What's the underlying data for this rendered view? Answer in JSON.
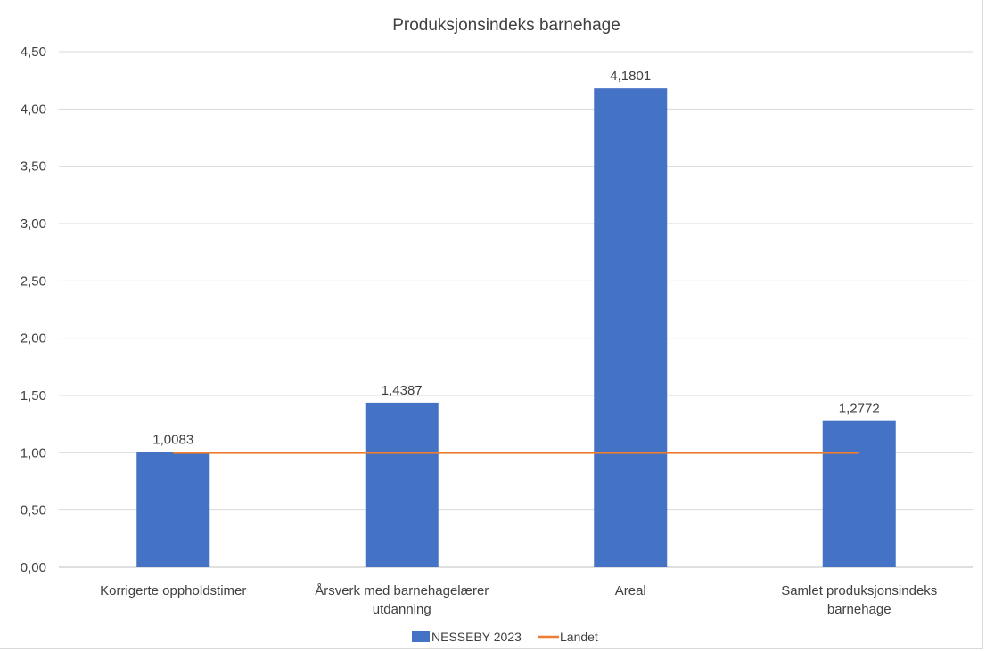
{
  "chart_data": {
    "type": "bar",
    "title": "Produksjonsindeks barnehage",
    "categories": [
      [
        "Korrigerte oppholdstimer"
      ],
      [
        "Årsverk med barnehagelærer",
        "utdanning"
      ],
      [
        "Areal"
      ],
      [
        "Samlet produksjonsindeks",
        "barnehage"
      ]
    ],
    "series": [
      {
        "name": "NESSEBY 2023",
        "type": "bar",
        "color": "#4472c4",
        "values": [
          1.0083,
          1.4387,
          4.1801,
          1.2772
        ],
        "labels": [
          "1,0083",
          "1,4387",
          "4,1801",
          "1,2772"
        ]
      },
      {
        "name": "Landet",
        "type": "line",
        "color": "#ed7d31",
        "values": [
          1.0,
          1.0,
          1.0,
          1.0
        ]
      }
    ],
    "ylim": [
      0,
      4.5
    ],
    "yticks": [
      0,
      0.5,
      1.0,
      1.5,
      2.0,
      2.5,
      3.0,
      3.5,
      4.0,
      4.5
    ],
    "ytick_labels": [
      "0,00",
      "0,50",
      "1,00",
      "1,50",
      "2,00",
      "2,50",
      "3,00",
      "3,50",
      "4,00",
      "4,50"
    ],
    "grid": true,
    "legend_position": "bottom"
  }
}
